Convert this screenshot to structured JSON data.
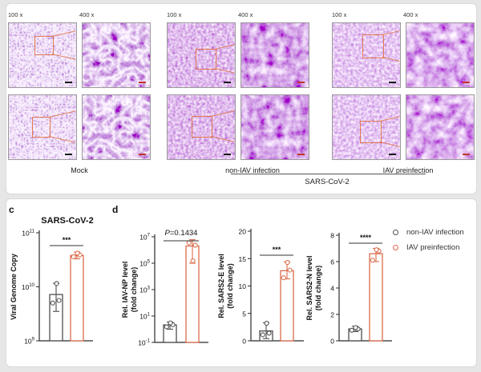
{
  "colors": {
    "accent_red": "#DB6B4B",
    "series_gray": "#4F4F4F",
    "roi_orange": "#E0744A",
    "scalebar_black": "#1A1A1A",
    "scalebar_red": "#C2352A"
  },
  "histology": {
    "groups": [
      {
        "label": "Mock",
        "magnifications": [
          "100 x",
          "400 x"
        ]
      },
      {
        "label": "non-IAV infection",
        "magnifications": [
          "100 x",
          "400 x"
        ]
      },
      {
        "label": "IAV preinfection",
        "magnifications": [
          "100 x",
          "400 x"
        ]
      }
    ],
    "bracket_label": "SARS-CoV-2"
  },
  "panels": {
    "c": "c",
    "d": "d"
  },
  "legend": {
    "items": [
      {
        "label": "non-IAV infection",
        "color": "#4F4F4F"
      },
      {
        "label": "IAV preinfection",
        "color": "#DB6B4B"
      }
    ]
  },
  "chart_data": [
    {
      "id": "viral-genome-copy",
      "type": "bar",
      "panel": "c",
      "title": "SARS-CoV-2",
      "ylabel_lines": [
        "Viral Genome Copy"
      ],
      "yscale": "log",
      "ylim": [
        1000000000.0,
        100000000000.0
      ],
      "yticks": [
        1000000000.0,
        10000000000.0,
        100000000000.0
      ],
      "significance": "***",
      "categories": [
        "non-IAV infection",
        "IAV preinfection"
      ],
      "series": [
        {
          "name": "non-IAV infection",
          "color": "#4F4F4F",
          "mean": 7200000000.0,
          "error": [
            3500000000.0,
            11600000000.0
          ],
          "points": [
            5000000000.0,
            5600000000.0,
            11500000000.0
          ]
        },
        {
          "name": "IAV preinfection",
          "color": "#DB6B4B",
          "mean": 38000000000.0,
          "error": [
            33000000000.0,
            44000000000.0
          ],
          "points": [
            36000000000.0,
            39000000000.0,
            42000000000.0
          ]
        }
      ]
    },
    {
      "id": "iav-np",
      "type": "bar",
      "panel": "d",
      "title": "",
      "ylabel_lines": [
        "Rel. IAV-NP level",
        "(fold change)"
      ],
      "yscale": "log",
      "ylim": [
        0.1,
        10000000.0
      ],
      "yticks": [
        0.1,
        10,
        1000,
        100000,
        10000000.0
      ],
      "significance": "P=0.1434",
      "categories": [
        "non-IAV infection",
        "IAV preinfection"
      ],
      "series": [
        {
          "name": "non-IAV infection",
          "color": "#4F4F4F",
          "mean": 2.1,
          "error": [
            1.0,
            3.5
          ],
          "points": [
            1.5,
            2.2,
            3.0
          ]
        },
        {
          "name": "IAV preinfection",
          "color": "#DB6B4B",
          "mean": 2000000.0,
          "error": [
            100000.0,
            6000000.0
          ],
          "points": [
            3500000.0,
            2300000.0,
            150000.0
          ]
        }
      ]
    },
    {
      "id": "sars2-e",
      "type": "bar",
      "panel": "d",
      "title": "",
      "ylabel_lines": [
        "Rel. SARS2-E level",
        "(fold change)"
      ],
      "yscale": "linear",
      "ylim": [
        0,
        20
      ],
      "yticks": [
        0,
        5,
        10,
        15,
        20
      ],
      "significance": "***",
      "categories": [
        "non-IAV infection",
        "IAV preinfection"
      ],
      "series": [
        {
          "name": "non-IAV infection",
          "color": "#4F4F4F",
          "mean": 1.8,
          "error": [
            0.4,
            3.3
          ],
          "points": [
            1.1,
            1.4,
            3.2
          ]
        },
        {
          "name": "IAV preinfection",
          "color": "#DB6B4B",
          "mean": 12.8,
          "error": [
            11.3,
            14.4
          ],
          "points": [
            11.5,
            12.9,
            14.3
          ]
        }
      ]
    },
    {
      "id": "sars2-n",
      "type": "bar",
      "panel": "d",
      "title": "",
      "ylabel_lines": [
        "Rel. SARS2-N level",
        "(fold change)"
      ],
      "yscale": "linear",
      "ylim": [
        0,
        8
      ],
      "yticks": [
        0,
        2,
        4,
        6,
        8
      ],
      "significance": "****",
      "categories": [
        "non-IAV infection",
        "IAV preinfection"
      ],
      "series": [
        {
          "name": "non-IAV infection",
          "color": "#4F4F4F",
          "mean": 0.9,
          "error": [
            0.7,
            1.1
          ],
          "points": [
            0.8,
            0.9,
            1.0
          ]
        },
        {
          "name": "IAV preinfection",
          "color": "#DB6B4B",
          "mean": 6.6,
          "error": [
            6.0,
            7.0
          ],
          "points": [
            6.1,
            6.8,
            6.9
          ]
        }
      ]
    }
  ]
}
